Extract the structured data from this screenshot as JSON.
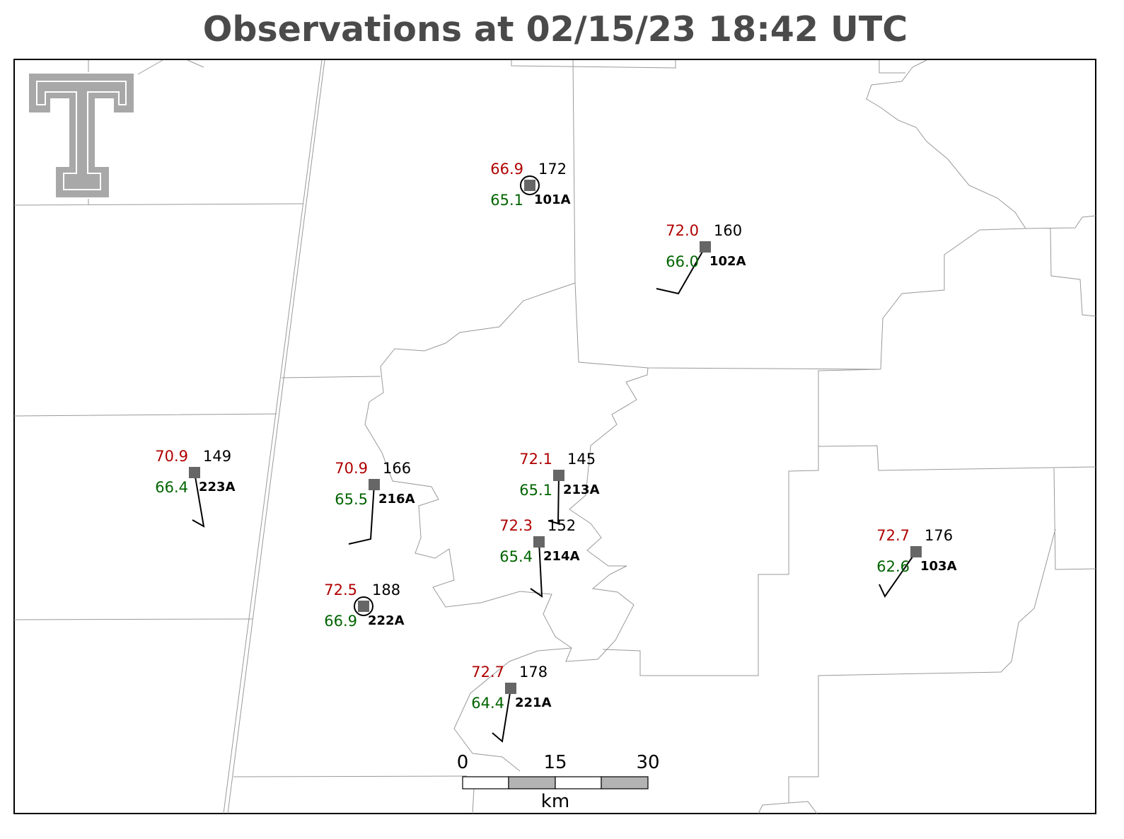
{
  "title": "Observations at 02/15/23 18:42 UTC",
  "stations": [
    {
      "id": "101A",
      "temp": "66.9",
      "dewpoint": "65.1",
      "pressure": "172"
    },
    {
      "id": "102A",
      "temp": "72.0",
      "dewpoint": "66.0",
      "pressure": "160"
    },
    {
      "id": "223A",
      "temp": "70.9",
      "dewpoint": "66.4",
      "pressure": "149"
    },
    {
      "id": "216A",
      "temp": "70.9",
      "dewpoint": "65.5",
      "pressure": "166"
    },
    {
      "id": "213A",
      "temp": "72.1",
      "dewpoint": "65.1",
      "pressure": "145"
    },
    {
      "id": "214A",
      "temp": "72.3",
      "dewpoint": "65.4",
      "pressure": "152"
    },
    {
      "id": "222A",
      "temp": "72.5",
      "dewpoint": "66.9",
      "pressure": "188"
    },
    {
      "id": "221A",
      "temp": "72.7",
      "dewpoint": "64.4",
      "pressure": "178"
    },
    {
      "id": "103A",
      "temp": "72.7",
      "dewpoint": "62.6",
      "pressure": "176"
    }
  ],
  "scale_bar": {
    "ticks": [
      "0",
      "15",
      "30"
    ],
    "unit": "km"
  }
}
